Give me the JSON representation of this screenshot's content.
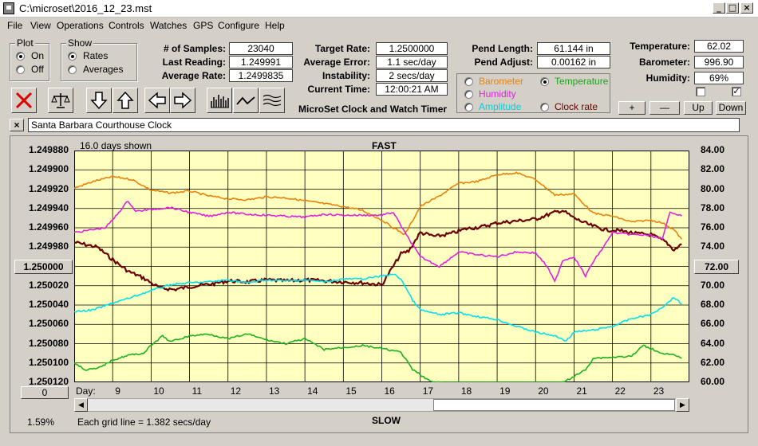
{
  "window": {
    "title": "C:\\microset\\2016_12_23.mst"
  },
  "menu": [
    "File",
    "View",
    "Operations",
    "Controls",
    "Watches",
    "GPS",
    "Configure",
    "Help"
  ],
  "plot": {
    "title": "Plot",
    "on": "On",
    "off": "Off",
    "selected": "On"
  },
  "show": {
    "title": "Show",
    "rates": "Rates",
    "averages": "Averages",
    "selected": "Rates"
  },
  "stats": {
    "samples_label": "# of Samples:",
    "samples": "23040",
    "last_reading_label": "Last Reading:",
    "last_reading": "1.249991",
    "average_rate_label": "Average Rate:",
    "average_rate": "1.2499835",
    "target_rate_label": "Target Rate:",
    "target_rate": "1.2500000",
    "average_error_label": "Average Error:",
    "average_error": "1.1 sec/day",
    "instability_label": "Instability:",
    "instability": "2 secs/day",
    "current_time_label": "Current Time:",
    "current_time": "12:00:21 AM",
    "pend_length_label": "Pend Length:",
    "pend_length": "61.144 in",
    "pend_adjust_label": "Pend Adjust:",
    "pend_adjust": "0.00162 in",
    "temperature_label": "Temperature:",
    "temperature": "62.02",
    "barometer_label": "Barometer:",
    "barometer": "996.90",
    "humidity_label": "Humidity:",
    "humidity": "69%"
  },
  "app_label": "MicroSet Clock and Watch Timer",
  "sensors": {
    "barometer": "Barometer",
    "humidity": "Humidity",
    "amplitude": "Amplitude",
    "temperature": "Temperature",
    "clock_rate": "Clock rate",
    "selected": "Temperature"
  },
  "adjust_buttons": {
    "plus": "+",
    "minus": "—",
    "up": "Up",
    "down": "Down"
  },
  "clock_name": "Santa Barbara Courthouse Clock",
  "close_x": "×",
  "chart_header": {
    "days_shown": "16.0 days shown",
    "fast": "FAST",
    "slow": "SLOW"
  },
  "chart_footer": {
    "left_pct": "1.59%",
    "grid_note": "Each grid line = 1.382 secs/day",
    "day_label": "Day:"
  },
  "left_center_button": "1.250000",
  "right_center_button": "72.00",
  "bottom_button": "0",
  "colors": {
    "barometer": "#e8820c",
    "humidity": "#e020e0",
    "amplitude": "#00e0f0",
    "temperature": "#1fb01f",
    "clock_rate": "#6b0000",
    "plot_bg": "#ffffc0"
  },
  "chart_data": {
    "type": "line",
    "title": "",
    "xlabel": "Day:",
    "x_ticks": [
      9,
      10,
      11,
      12,
      13,
      14,
      15,
      16,
      17,
      18,
      19,
      20,
      21,
      22,
      23
    ],
    "xlim": [
      8,
      24
    ],
    "left_axis": {
      "ticks": [
        "1.249880",
        "1.249900",
        "1.249920",
        "1.249940",
        "1.249960",
        "1.249980",
        "1.250000",
        "1.250020",
        "1.250040",
        "1.250060",
        "1.250080",
        "1.250100",
        "1.250120"
      ],
      "ylim": [
        1.24988,
        1.25012
      ],
      "inverted": true
    },
    "right_axis": {
      "ticks": [
        "84.00",
        "82.00",
        "80.00",
        "78.00",
        "76.00",
        "74.00",
        "72.00",
        "70.00",
        "68.00",
        "66.00",
        "64.00",
        "62.00",
        "60.00"
      ],
      "ylim": [
        60,
        84
      ]
    },
    "series": [
      {
        "name": "Clock rate",
        "axis": "left",
        "color": "#6b0000",
        "x": [
          8.0,
          8.6,
          9.0,
          9.4,
          9.8,
          10.2,
          10.6,
          11.0,
          11.6,
          12.0,
          12.5,
          13.0,
          13.5,
          14.0,
          14.5,
          15.0,
          15.5,
          16.0,
          16.5,
          16.7,
          17.0,
          17.4,
          17.8,
          18.2,
          18.6,
          19.0,
          19.5,
          20.0,
          20.5,
          20.7,
          21.0,
          21.4,
          21.8,
          22.2,
          22.6,
          23.0,
          23.4,
          23.6,
          23.8
        ],
        "y": [
          1.249975,
          1.24998,
          1.249993,
          1.250005,
          1.250012,
          1.250022,
          1.250024,
          1.250021,
          1.250018,
          1.250015,
          1.250016,
          1.250014,
          1.250015,
          1.250014,
          1.250015,
          1.250016,
          1.250017,
          1.250019,
          1.249987,
          1.249984,
          1.249965,
          1.249969,
          1.249966,
          1.249961,
          1.249959,
          1.249955,
          1.249953,
          1.249951,
          1.249944,
          1.249942,
          1.24995,
          1.249957,
          1.249962,
          1.249963,
          1.249966,
          1.249967,
          1.249975,
          1.249983,
          1.249977
        ]
      },
      {
        "name": "Barometer",
        "axis": "right",
        "color": "#e8820c",
        "x": [
          8.0,
          8.5,
          9.0,
          9.5,
          10.0,
          10.5,
          11.0,
          11.5,
          12.0,
          12.5,
          13.0,
          13.5,
          14.0,
          14.5,
          15.0,
          15.5,
          16.0,
          16.3,
          16.6,
          17.0,
          17.5,
          18.0,
          18.5,
          19.0,
          19.5,
          20.0,
          20.5,
          21.0,
          21.5,
          22.0,
          22.5,
          23.0,
          23.3,
          23.6,
          23.8
        ],
        "y": [
          80.1,
          80.8,
          81.3,
          81.0,
          79.9,
          79.6,
          79.8,
          79.3,
          79.0,
          78.9,
          79.2,
          79.1,
          78.8,
          78.5,
          78.2,
          77.8,
          76.8,
          76.0,
          75.3,
          78.2,
          79.3,
          80.6,
          80.8,
          81.5,
          81.7,
          81.0,
          79.4,
          79.5,
          77.5,
          77.2,
          76.6,
          76.8,
          76.5,
          75.8,
          74.8
        ]
      },
      {
        "name": "Humidity",
        "axis": "right",
        "color": "#e020e0",
        "x": [
          8.0,
          8.8,
          9.0,
          9.4,
          9.6,
          10.0,
          10.5,
          11.0,
          11.5,
          12.0,
          12.5,
          13.0,
          13.5,
          14.0,
          14.5,
          15.0,
          15.5,
          16.0,
          16.3,
          16.6,
          17.0,
          17.5,
          18.0,
          18.5,
          19.0,
          19.5,
          20.0,
          20.3,
          20.5,
          20.7,
          21.0,
          21.3,
          21.5,
          21.8,
          22.0,
          22.5,
          23.0,
          23.3,
          23.5,
          23.8
        ],
        "y": [
          75.5,
          76.0,
          76.8,
          78.8,
          77.7,
          77.9,
          78.1,
          77.6,
          77.2,
          77.6,
          77.4,
          77.3,
          77.2,
          77.1,
          77.4,
          77.3,
          77.3,
          77.3,
          77.6,
          75.5,
          73.0,
          72.0,
          73.5,
          73.2,
          73.0,
          73.5,
          73.4,
          72.0,
          70.4,
          72.6,
          73.0,
          71.0,
          72.5,
          74.2,
          75.5,
          75.3,
          75.2,
          74.8,
          77.7,
          77.2
        ]
      },
      {
        "name": "Amplitude",
        "axis": "right",
        "color": "#00e0f0",
        "x": [
          8.0,
          8.5,
          9.0,
          9.5,
          10.0,
          10.5,
          11.0,
          11.5,
          12.0,
          12.5,
          13.0,
          13.5,
          14.0,
          14.5,
          15.0,
          15.5,
          16.0,
          16.3,
          16.5,
          16.8,
          17.0,
          17.5,
          18.0,
          18.5,
          19.0,
          19.5,
          20.0,
          20.5,
          20.8,
          21.0,
          21.5,
          22.0,
          22.5,
          23.0,
          23.3,
          23.6,
          23.8
        ],
        "y": [
          67.3,
          67.5,
          68.2,
          68.8,
          69.5,
          70.1,
          70.3,
          70.4,
          70.6,
          70.3,
          70.6,
          70.5,
          70.6,
          70.4,
          70.7,
          70.7,
          71.0,
          71.2,
          70.7,
          68.5,
          67.5,
          67.0,
          67.2,
          66.8,
          66.5,
          65.8,
          65.2,
          64.8,
          64.3,
          65.2,
          65.4,
          65.8,
          66.6,
          67.0,
          67.8,
          68.8,
          68.1
        ]
      },
      {
        "name": "Temperature",
        "axis": "right",
        "color": "#1fb01f",
        "x": [
          8.0,
          8.3,
          8.6,
          9.0,
          9.4,
          9.8,
          10.0,
          10.3,
          10.5,
          11.0,
          11.5,
          12.0,
          12.5,
          13.0,
          13.5,
          14.0,
          14.5,
          15.0,
          15.5,
          16.0,
          16.5,
          16.8,
          17.0,
          17.3,
          17.5,
          18.0,
          18.5,
          19.0,
          19.5,
          20.0,
          20.5,
          20.8,
          21.0,
          21.3,
          21.5,
          22.0,
          22.5,
          22.8,
          23.0,
          23.3,
          23.6,
          23.8
        ],
        "y": [
          62.0,
          61.3,
          61.4,
          62.3,
          62.8,
          63.0,
          63.8,
          64.8,
          64.2,
          64.8,
          65.0,
          64.5,
          65.0,
          64.4,
          64.0,
          64.5,
          63.4,
          63.6,
          63.8,
          63.5,
          63.1,
          61.3,
          60.8,
          60.0,
          60.0,
          59.3,
          59.3,
          59.3,
          59.5,
          59.3,
          59.6,
          60.2,
          60.6,
          61.3,
          62.5,
          62.6,
          62.7,
          63.8,
          63.5,
          63.0,
          62.8,
          62.5
        ]
      }
    ]
  }
}
